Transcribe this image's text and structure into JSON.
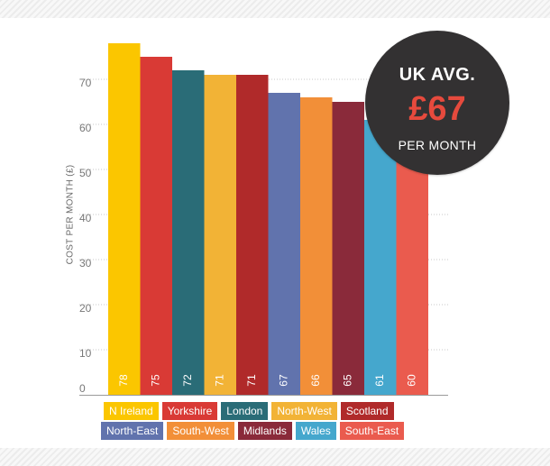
{
  "chart_data": {
    "type": "bar",
    "ylabel": "COST PER MONTH (£)",
    "ylim": [
      0,
      80
    ],
    "yticks": [
      0,
      10,
      20,
      30,
      40,
      50,
      60,
      70
    ],
    "grid": "horizontal dotted",
    "data_labels": "inside bar, rotated",
    "categories": [
      "N Ireland",
      "Yorkshire",
      "London",
      "North-West",
      "Scotland",
      "North-East",
      "South-West",
      "Midlands",
      "Wales",
      "South-East"
    ],
    "values": [
      78,
      75,
      72,
      71,
      71,
      67,
      66,
      65,
      61,
      60
    ],
    "colors": [
      "#fbc600",
      "#d93a35",
      "#2a6c77",
      "#f2b336",
      "#b02a2a",
      "#6173ad",
      "#f28f38",
      "#8a2a3a",
      "#45a7cd",
      "#ea5b4e"
    ]
  },
  "legend": {
    "row1": [
      {
        "label": "N Ireland",
        "color": "#fbc600"
      },
      {
        "label": "Yorkshire",
        "color": "#d93a35"
      },
      {
        "label": "London",
        "color": "#2a6c77"
      },
      {
        "label": "North-West",
        "color": "#f2b336"
      },
      {
        "label": "Scotland",
        "color": "#b02a2a"
      }
    ],
    "row2": [
      {
        "label": "North-East",
        "color": "#6173ad"
      },
      {
        "label": "South-West",
        "color": "#f28f38"
      },
      {
        "label": "Midlands",
        "color": "#8a2a3a"
      },
      {
        "label": "Wales",
        "color": "#45a7cd"
      },
      {
        "label": "South-East",
        "color": "#ea5b4e"
      }
    ]
  },
  "badge": {
    "title": "UK AVG.",
    "value": "£67",
    "subtitle": "PER MONTH"
  }
}
